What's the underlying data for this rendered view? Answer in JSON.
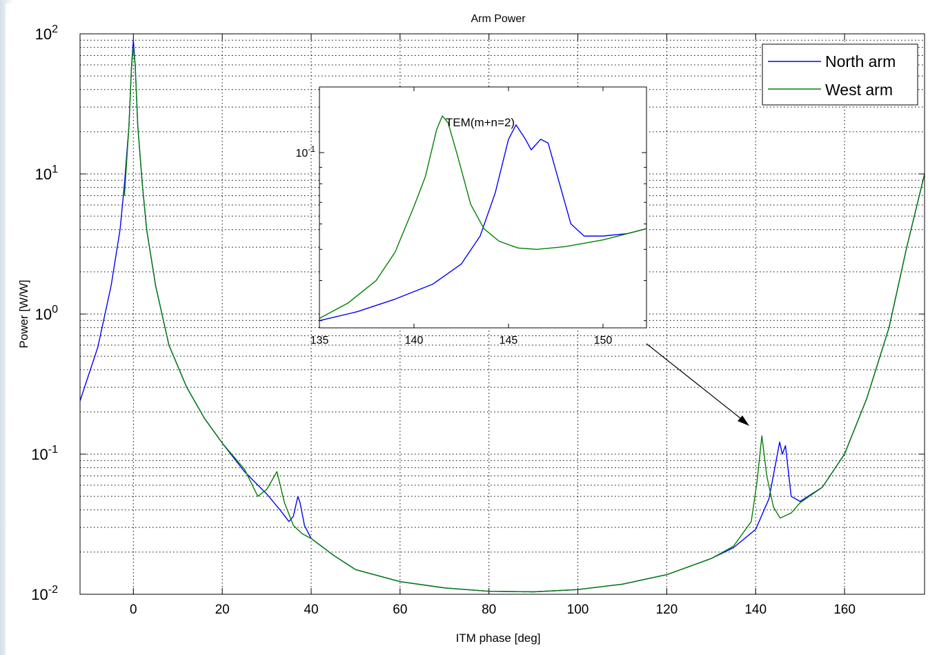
{
  "chart_data": [
    {
      "type": "line",
      "title": "Arm Power",
      "xlabel": "ITM phase [deg]",
      "ylabel": "Power [W/W]",
      "xlim": [
        -12,
        178
      ],
      "ylim": [
        0.01,
        100
      ],
      "yscale": "log",
      "grid": true,
      "legend_position": "top-right",
      "x_ticks": [
        0,
        20,
        40,
        60,
        80,
        100,
        120,
        140,
        160
      ],
      "x_tick_labels": [
        "0",
        "20",
        "40",
        "60",
        "80",
        "100",
        "120",
        "140",
        "160"
      ],
      "y_ticks": [
        0.01,
        0.1,
        1,
        10,
        100
      ],
      "y_tick_labels": [
        {
          "base": "10",
          "exp": "-2"
        },
        {
          "base": "10",
          "exp": "-1"
        },
        {
          "base": "10",
          "exp": "0"
        },
        {
          "base": "10",
          "exp": "1"
        },
        {
          "base": "10",
          "exp": "2"
        }
      ],
      "series": [
        {
          "name": "North arm",
          "color": "#0000ff",
          "points": [
            [
              -12,
              0.24
            ],
            [
              -8,
              0.58
            ],
            [
              -5,
              1.6
            ],
            [
              -3,
              4.0
            ],
            [
              -2,
              8.5
            ],
            [
              -1,
              22
            ],
            [
              -0.4,
              60
            ],
            [
              0,
              90
            ],
            [
              0.4,
              60
            ],
            [
              1,
              22
            ],
            [
              2,
              8.5
            ],
            [
              3,
              4.0
            ],
            [
              5,
              1.6
            ],
            [
              8,
              0.6
            ],
            [
              12,
              0.3
            ],
            [
              16,
              0.18
            ],
            [
              20,
              0.12
            ],
            [
              25,
              0.075
            ],
            [
              30,
              0.052
            ],
            [
              33,
              0.04
            ],
            [
              35,
              0.033
            ],
            [
              36,
              0.036
            ],
            [
              37,
              0.05
            ],
            [
              37.5,
              0.045
            ],
            [
              38.5,
              0.031
            ],
            [
              40,
              0.025
            ],
            [
              45,
              0.019
            ],
            [
              50,
              0.015
            ],
            [
              60,
              0.0123
            ],
            [
              70,
              0.0111
            ],
            [
              80,
              0.0105
            ],
            [
              90,
              0.0104
            ],
            [
              100,
              0.0108
            ],
            [
              110,
              0.0118
            ],
            [
              120,
              0.0138
            ],
            [
              130,
              0.018
            ],
            [
              135,
              0.0215
            ],
            [
              140,
              0.029
            ],
            [
              143,
              0.048
            ],
            [
              145.4,
              0.122
            ],
            [
              146,
              0.1
            ],
            [
              146.7,
              0.115
            ],
            [
              148,
              0.05
            ],
            [
              150,
              0.046
            ],
            [
              155,
              0.058
            ],
            [
              160,
              0.1
            ],
            [
              165,
              0.25
            ],
            [
              170,
              0.8
            ],
            [
              174,
              3.0
            ],
            [
              178,
              10
            ]
          ]
        },
        {
          "name": "West arm",
          "color": "#008000",
          "points": [
            [
              -2,
              7
            ],
            [
              -1,
              22
            ],
            [
              -0.4,
              60
            ],
            [
              0,
              80
            ],
            [
              0.4,
              60
            ],
            [
              1,
              22
            ],
            [
              2,
              8.5
            ],
            [
              3,
              4.0
            ],
            [
              5,
              1.6
            ],
            [
              8,
              0.6
            ],
            [
              12,
              0.3
            ],
            [
              16,
              0.18
            ],
            [
              20,
              0.12
            ],
            [
              25,
              0.078
            ],
            [
              28,
              0.05
            ],
            [
              30,
              0.056
            ],
            [
              32.3,
              0.075
            ],
            [
              34,
              0.045
            ],
            [
              36,
              0.031
            ],
            [
              38,
              0.027
            ],
            [
              40,
              0.025
            ],
            [
              45,
              0.019
            ],
            [
              50,
              0.015
            ],
            [
              60,
              0.0123
            ],
            [
              70,
              0.0111
            ],
            [
              80,
              0.0105
            ],
            [
              90,
              0.0104
            ],
            [
              100,
              0.0108
            ],
            [
              110,
              0.0118
            ],
            [
              120,
              0.0138
            ],
            [
              130,
              0.018
            ],
            [
              135,
              0.022
            ],
            [
              139,
              0.033
            ],
            [
              140.3,
              0.063
            ],
            [
              141.4,
              0.135
            ],
            [
              142.5,
              0.07
            ],
            [
              144,
              0.042
            ],
            [
              145.5,
              0.035
            ],
            [
              148,
              0.038
            ],
            [
              150,
              0.045
            ],
            [
              155,
              0.058
            ],
            [
              160,
              0.1
            ],
            [
              165,
              0.25
            ],
            [
              170,
              0.8
            ],
            [
              174,
              3.0
            ],
            [
              178,
              10
            ]
          ]
        }
      ]
    },
    {
      "type": "line",
      "title": "TEM(m+n=2)",
      "xlim": [
        135,
        152.3
      ],
      "yscale": "log",
      "ylim": [
        0.0285,
        0.16
      ],
      "x_ticks": [
        135,
        140,
        145,
        150
      ],
      "x_tick_labels": [
        "135",
        "140",
        "145",
        "150"
      ],
      "y_ticks": [
        0.1
      ],
      "y_tick_labels": [
        {
          "base": "10",
          "exp": "-1"
        }
      ],
      "series": [
        {
          "name": "North arm",
          "color": "#0000ff",
          "points": [
            [
              135,
              0.03
            ],
            [
              137,
              0.032
            ],
            [
              139,
              0.035
            ],
            [
              141,
              0.039
            ],
            [
              142.5,
              0.045
            ],
            [
              143.5,
              0.055
            ],
            [
              144.3,
              0.075
            ],
            [
              145,
              0.11
            ],
            [
              145.4,
              0.122
            ],
            [
              145.9,
              0.11
            ],
            [
              146.2,
              0.102
            ],
            [
              146.7,
              0.11
            ],
            [
              147.1,
              0.107
            ],
            [
              147.7,
              0.08
            ],
            [
              148.3,
              0.06
            ],
            [
              149,
              0.055
            ],
            [
              150,
              0.055
            ],
            [
              151.3,
              0.056
            ],
            [
              152.3,
              0.058
            ]
          ]
        },
        {
          "name": "West arm",
          "color": "#008000",
          "points": [
            [
              135,
              0.0305
            ],
            [
              136.5,
              0.034
            ],
            [
              138,
              0.04
            ],
            [
              139,
              0.049
            ],
            [
              140,
              0.068
            ],
            [
              140.6,
              0.084
            ],
            [
              141.2,
              0.118
            ],
            [
              141.5,
              0.13
            ],
            [
              141.8,
              0.124
            ],
            [
              142.3,
              0.098
            ],
            [
              143,
              0.069
            ],
            [
              143.7,
              0.058
            ],
            [
              144.5,
              0.053
            ],
            [
              145.5,
              0.0505
            ],
            [
              146.5,
              0.05
            ],
            [
              148,
              0.051
            ],
            [
              150,
              0.0535
            ],
            [
              152.3,
              0.058
            ]
          ]
        }
      ]
    }
  ]
}
